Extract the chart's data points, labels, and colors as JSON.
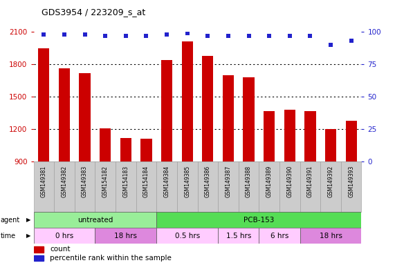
{
  "title": "GDS3954 / 223209_s_at",
  "samples": [
    "GSM149381",
    "GSM149382",
    "GSM149383",
    "GSM154182",
    "GSM154183",
    "GSM154184",
    "GSM149384",
    "GSM149385",
    "GSM149386",
    "GSM149387",
    "GSM149388",
    "GSM149389",
    "GSM149390",
    "GSM149391",
    "GSM149392",
    "GSM149393"
  ],
  "counts": [
    1950,
    1760,
    1720,
    1210,
    1120,
    1110,
    1840,
    2010,
    1880,
    1700,
    1680,
    1370,
    1380,
    1370,
    1200,
    1280
  ],
  "percentile_ranks": [
    98,
    98,
    98,
    97,
    97,
    97,
    98,
    99,
    97,
    97,
    97,
    97,
    97,
    97,
    90,
    93
  ],
  "bar_color": "#cc0000",
  "dot_color": "#2222cc",
  "ylim_left": [
    900,
    2100
  ],
  "ylim_right": [
    0,
    100
  ],
  "yticks_left": [
    900,
    1200,
    1500,
    1800,
    2100
  ],
  "yticks_right": [
    0,
    25,
    50,
    75,
    100
  ],
  "grid_dotted_at": [
    1200,
    1500,
    1800
  ],
  "grid_color": "#000000",
  "axis_color_left": "#cc0000",
  "axis_color_right": "#2222cc",
  "agent_groups": [
    {
      "label": "untreated",
      "start": 0,
      "end": 6,
      "color": "#aaeea a"
    },
    {
      "label": "PCB-153",
      "start": 6,
      "end": 16,
      "color": "#55dd55"
    }
  ],
  "time_groups": [
    {
      "label": "0 hrs",
      "start": 0,
      "end": 3,
      "color": "#ffccff"
    },
    {
      "label": "18 hrs",
      "start": 3,
      "end": 6,
      "color": "#dd88dd"
    },
    {
      "label": "0.5 hrs",
      "start": 6,
      "end": 9,
      "color": "#ffccff"
    },
    {
      "label": "1.5 hrs",
      "start": 9,
      "end": 11,
      "color": "#ffccff"
    },
    {
      "label": "6 hrs",
      "start": 11,
      "end": 13,
      "color": "#ffccff"
    },
    {
      "label": "18 hrs",
      "start": 13,
      "end": 16,
      "color": "#dd88dd"
    }
  ],
  "xlabel_agent": "agent",
  "xlabel_time": "time",
  "legend_count_label": "count",
  "legend_pct_label": "percentile rank within the sample",
  "bg_color": "#ffffff",
  "tick_label_area_color": "#cccccc"
}
